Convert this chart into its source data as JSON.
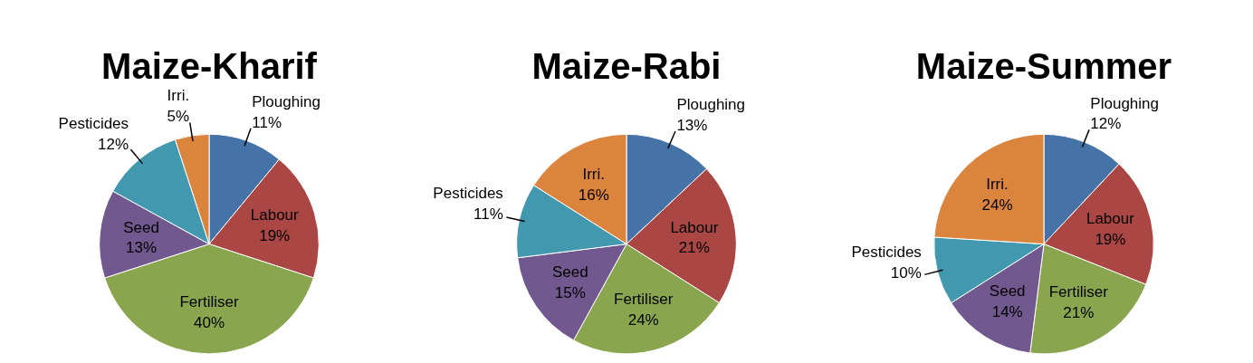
{
  "chart_data": [
    {
      "type": "pie",
      "title": "Maize-Kharif",
      "categories": [
        "Ploughing",
        "Labour",
        "Fertiliser",
        "Seed",
        "Pesticides",
        "Irri."
      ],
      "values": [
        11,
        19,
        40,
        13,
        12,
        5
      ],
      "value_labels": [
        "11%",
        "19%",
        "40%",
        "13%",
        "12%",
        "5%"
      ],
      "colors": [
        "#4572a7",
        "#aa4643",
        "#89a54e",
        "#71588f",
        "#4198af",
        "#db843d"
      ]
    },
    {
      "type": "pie",
      "title": "Maize-Rabi",
      "categories": [
        "Ploughing",
        "Labour",
        "Fertiliser",
        "Seed",
        "Pesticides",
        "Irri."
      ],
      "values": [
        13,
        21,
        24,
        15,
        11,
        16
      ],
      "value_labels": [
        "13%",
        "21%",
        "24%",
        "15%",
        "11%",
        "16%"
      ],
      "colors": [
        "#4572a7",
        "#aa4643",
        "#89a54e",
        "#71588f",
        "#4198af",
        "#db843d"
      ]
    },
    {
      "type": "pie",
      "title": "Maize-Summer",
      "categories": [
        "Ploughing",
        "Labour",
        "Fertiliser",
        "Seed",
        "Pesticides",
        "Irri."
      ],
      "values": [
        12,
        19,
        21,
        14,
        10,
        24
      ],
      "value_labels": [
        "12%",
        "19%",
        "21%",
        "14%",
        "10%",
        "24%"
      ],
      "colors": [
        "#4572a7",
        "#aa4643",
        "#89a54e",
        "#71588f",
        "#4198af",
        "#db843d"
      ]
    }
  ]
}
